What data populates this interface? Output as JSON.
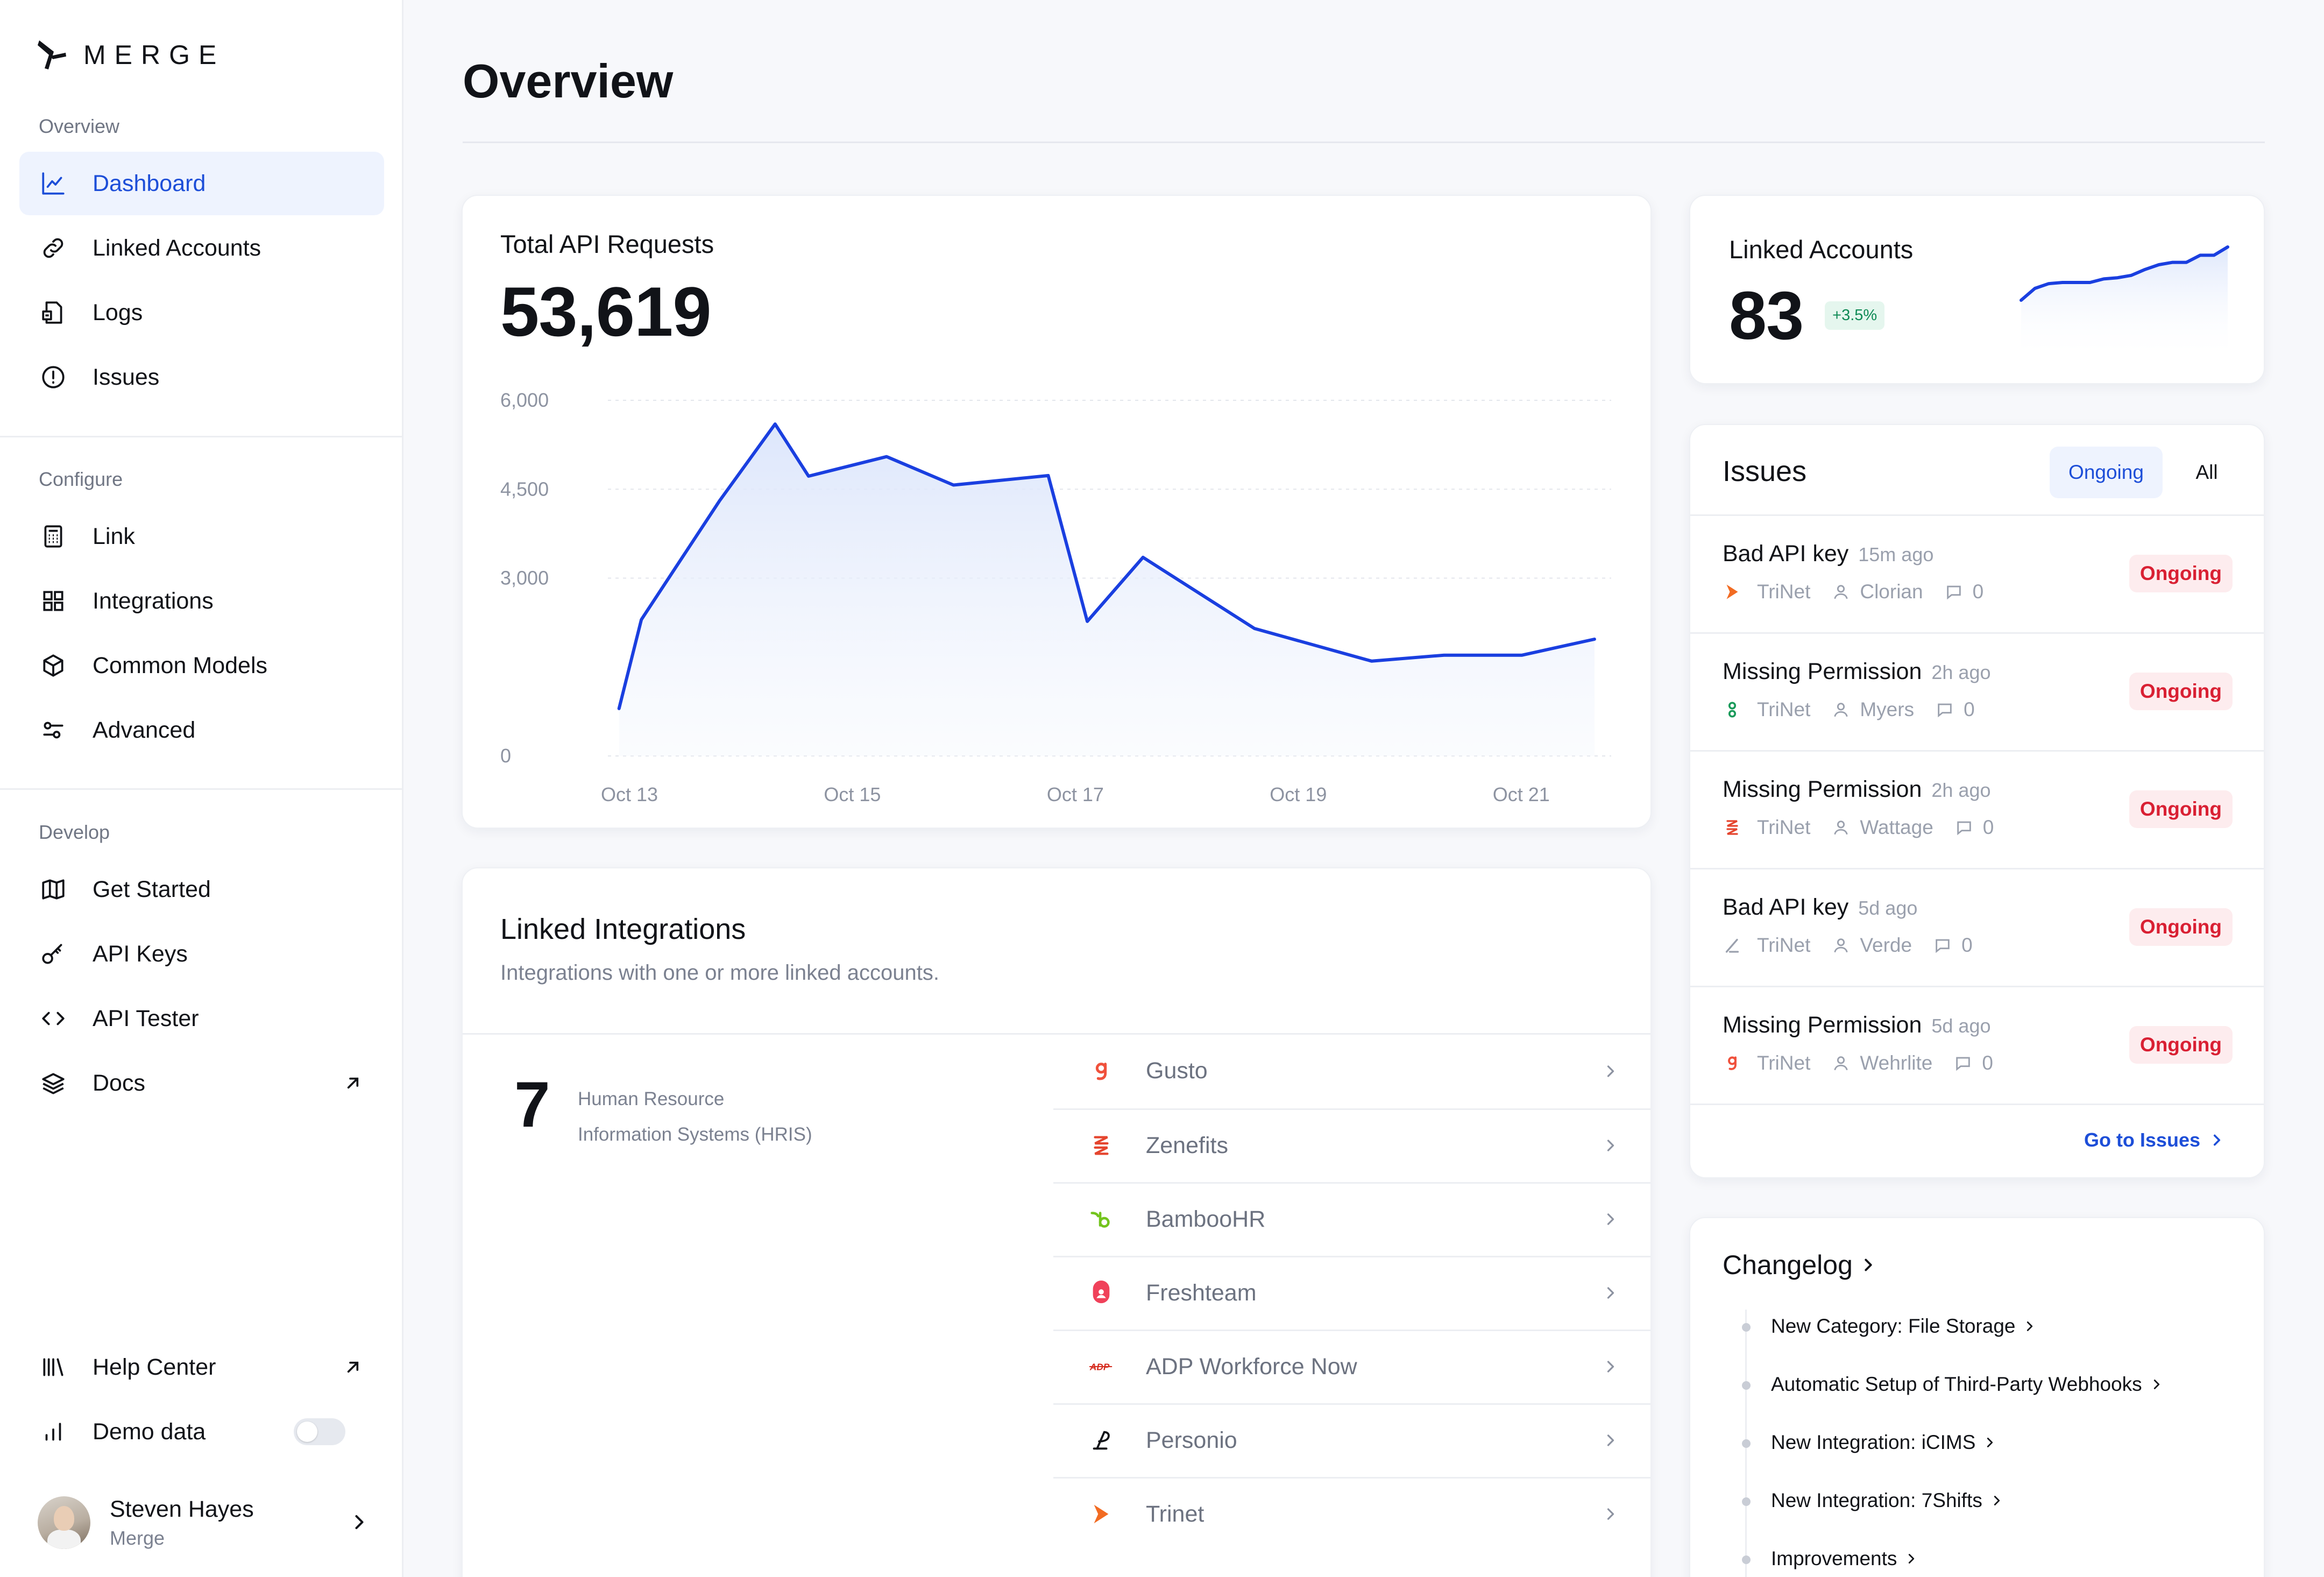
{
  "brand": {
    "name": "MERGE"
  },
  "sidebar": {
    "sections": [
      {
        "label": "Overview",
        "items": [
          {
            "label": "Dashboard",
            "icon": "chart-line-icon",
            "active": true
          },
          {
            "label": "Linked Accounts",
            "icon": "link-icon"
          },
          {
            "label": "Logs",
            "icon": "logs-icon"
          },
          {
            "label": "Issues",
            "icon": "alert-circle-icon"
          }
        ]
      },
      {
        "label": "Configure",
        "items": [
          {
            "label": "Link",
            "icon": "calculator-icon"
          },
          {
            "label": "Integrations",
            "icon": "grid-icon"
          },
          {
            "label": "Common Models",
            "icon": "cube-icon"
          },
          {
            "label": "Advanced",
            "icon": "sliders-icon"
          }
        ]
      },
      {
        "label": "Develop",
        "items": [
          {
            "label": "Get Started",
            "icon": "map-icon"
          },
          {
            "label": "API Keys",
            "icon": "key-icon"
          },
          {
            "label": "API Tester",
            "icon": "code-icon"
          },
          {
            "label": "Docs",
            "icon": "layers-icon",
            "external": true
          }
        ]
      }
    ],
    "footer": {
      "help_center": "Help Center",
      "demo_data": "Demo data",
      "demo_data_enabled": false,
      "user": {
        "name": "Steven Hayes",
        "org": "Merge"
      }
    }
  },
  "main": {
    "title": "Overview",
    "api_requests": {
      "title": "Total API Requests",
      "total": "53,619"
    },
    "linked_accounts": {
      "title": "Linked Accounts",
      "count": "83",
      "change": "+3.5%"
    },
    "issues": {
      "title": "Issues",
      "tabs": [
        "Ongoing",
        "All"
      ],
      "active_tab": "Ongoing",
      "rows": [
        {
          "title": "Bad API key",
          "time": "15m ago",
          "integration": "TriNet",
          "user": "Clorian",
          "comments": "0",
          "status": "Ongoing",
          "icon": "trinet-icon"
        },
        {
          "title": "Missing Permission",
          "time": "2h ago",
          "integration": "TriNet",
          "user": "Myers",
          "comments": "0",
          "status": "Ongoing",
          "icon": "gusto-alt-icon"
        },
        {
          "title": "Missing Permission",
          "time": "2h ago",
          "integration": "TriNet",
          "user": "Wattage",
          "comments": "0",
          "status": "Ongoing",
          "icon": "zenefits-icon"
        },
        {
          "title": "Bad API key",
          "time": "5d ago",
          "integration": "TriNet",
          "user": "Verde",
          "comments": "0",
          "status": "Ongoing",
          "icon": "personio-icon"
        },
        {
          "title": "Missing Permission",
          "time": "5d ago",
          "integration": "TriNet",
          "user": "Wehrlite",
          "comments": "0",
          "status": "Ongoing",
          "icon": "gusto-icon"
        }
      ],
      "go_link": "Go to Issues"
    },
    "linked_integrations": {
      "title": "Linked Integrations",
      "subtitle": "Integrations with one or more linked accounts.",
      "count": "7",
      "category_line1": "Human Resource",
      "category_line2": "Information Systems (HRIS)",
      "items": [
        {
          "name": "Gusto",
          "icon": "gusto-icon"
        },
        {
          "name": "Zenefits",
          "icon": "zenefits-icon"
        },
        {
          "name": "BambooHR",
          "icon": "bamboohr-icon"
        },
        {
          "name": "Freshteam",
          "icon": "freshteam-icon"
        },
        {
          "name": "ADP Workforce Now",
          "icon": "adp-icon"
        },
        {
          "name": "Personio",
          "icon": "personio-icon"
        },
        {
          "name": "Trinet",
          "icon": "trinet-icon"
        }
      ]
    },
    "changelog": {
      "title": "Changelog",
      "items": [
        "New Category: File Storage",
        "Automatic Setup of Third-Party Webhooks",
        "New Integration: iCIMS",
        "New Integration: 7Shifts",
        "Improvements"
      ]
    }
  },
  "colors": {
    "accent": "#1d4ed8",
    "line": "#1a3fe0",
    "danger": "#d92033",
    "success": "#0f8a55"
  },
  "chart_data": [
    {
      "type": "area",
      "title": "Total API Requests",
      "x_ticks": [
        "Oct 13",
        "Oct 15",
        "Oct 17",
        "Oct 19",
        "Oct 21"
      ],
      "y_ticks": [
        "0",
        "3,000",
        "4,500",
        "6,000"
      ],
      "ylim": [
        0,
        6000
      ],
      "xlim": [
        0,
        9
      ],
      "grid": true,
      "series": [
        {
          "x": [
            0.1,
            0.3,
            1.0,
            1.5,
            1.8,
            2.5,
            3.1,
            3.95,
            4.3,
            4.8,
            5.8,
            6.85,
            7.5,
            8.2,
            8.85
          ],
          "y": [
            800,
            2300,
            4300,
            5600,
            4720,
            5050,
            4570,
            4730,
            2270,
            3350,
            2150,
            1600,
            1700,
            1700,
            1970
          ]
        }
      ]
    },
    {
      "type": "line",
      "title": "Linked Accounts",
      "series": [
        {
          "y": [
            0.1,
            0.3,
            0.38,
            0.4,
            0.4,
            0.4,
            0.46,
            0.48,
            0.52,
            0.62,
            0.7,
            0.74,
            0.74,
            0.86,
            0.86,
            1.0
          ]
        }
      ]
    }
  ]
}
